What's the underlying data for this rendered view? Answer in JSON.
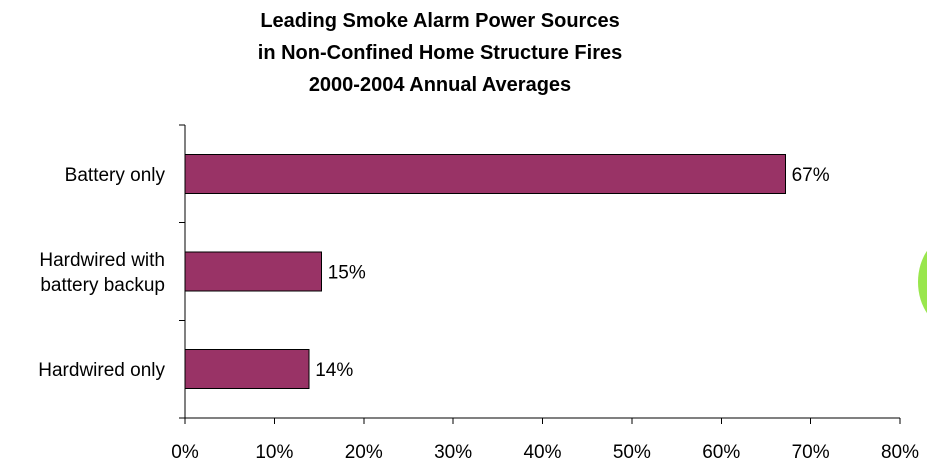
{
  "chart_data": {
    "type": "bar",
    "orientation": "horizontal",
    "title": [
      "Leading Smoke Alarm Power Sources",
      "in Non-Confined Home Structure Fires",
      "2000-2004 Annual Averages"
    ],
    "categories": [
      [
        "Battery only"
      ],
      [
        "Hardwired with",
        "battery backup"
      ],
      [
        "Hardwired only"
      ]
    ],
    "values": [
      67.2,
      15.3,
      13.9
    ],
    "data_labels": [
      "67%",
      "15%",
      "14%"
    ],
    "xlim": [
      0,
      80
    ],
    "x_ticks": [
      "0%",
      "10%",
      "20%",
      "30%",
      "40%",
      "50%",
      "60%",
      "70%",
      "80%"
    ],
    "grid": false,
    "legend": "none",
    "bar_color": "#993366",
    "accent_circle_color": "#99e64d"
  }
}
